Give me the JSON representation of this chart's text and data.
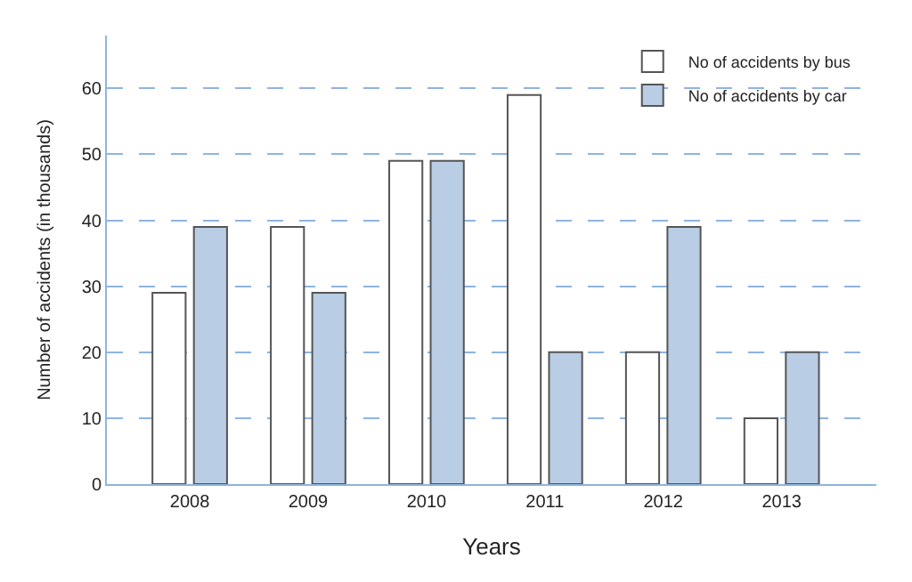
{
  "chart_data": {
    "type": "bar",
    "xlabel": "Years",
    "ylabel": "Number of accidents (in thousands)",
    "categories": [
      "2008",
      "2009",
      "2010",
      "2011",
      "2012",
      "2013"
    ],
    "series": [
      {
        "name": "No of accidents by bus",
        "color": "#ffffff",
        "values": [
          29,
          39,
          49,
          59,
          20,
          10
        ]
      },
      {
        "name": "No of accidents by car",
        "color": "#b9cde5",
        "values": [
          39,
          29,
          49,
          20,
          39,
          20
        ]
      }
    ],
    "ylim": [
      0,
      68
    ],
    "yticks": [
      0,
      10,
      20,
      30,
      40,
      50,
      60
    ],
    "grid": "y",
    "legend": "top right"
  }
}
